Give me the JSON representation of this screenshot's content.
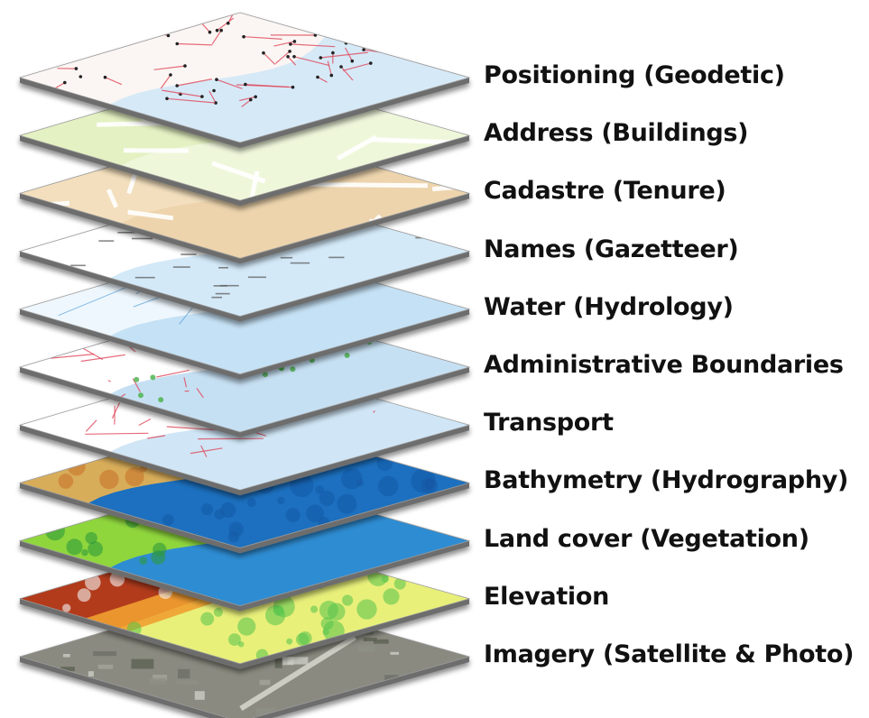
{
  "layers": [
    {
      "label": "Positioning (Geodetic)",
      "palette": [
        "#fbf6f3",
        "#d6e9f7",
        "#e0485a"
      ],
      "style": "geodetic"
    },
    {
      "label": "Address (Buildings)",
      "palette": [
        "#e4f1c2",
        "#f3f9e6",
        "#ffffff"
      ],
      "style": "address"
    },
    {
      "label": "Cadastre (Tenure)",
      "palette": [
        "#f3dfbd",
        "#e9cfa6",
        "#ffffff"
      ],
      "style": "cadastre"
    },
    {
      "label": "Names (Gazetteer)",
      "palette": [
        "#ffffff",
        "#d3e9f8",
        "#555555"
      ],
      "style": "names"
    },
    {
      "label": "Water (Hydrology)",
      "palette": [
        "#eef7fd",
        "#c5e1f5",
        "#3a8fd6"
      ],
      "style": "water"
    },
    {
      "label": "Administrative Boundaries",
      "palette": [
        "#ffffff",
        "#c6e0f3",
        "#e0485a"
      ],
      "style": "admin"
    },
    {
      "label": "Transport",
      "palette": [
        "#ffffff",
        "#d0e6f6",
        "#e0485a"
      ],
      "style": "transport"
    },
    {
      "label": "Bathymetry (Hydrography)",
      "palette": [
        "#d8ad5a",
        "#1f6fbf",
        "#0f4f9c"
      ],
      "style": "bathymetry"
    },
    {
      "label": "Land cover (Vegetation)",
      "palette": [
        "#8fd63c",
        "#2f8cd2",
        "#2f9a3a"
      ],
      "style": "landcover"
    },
    {
      "label": "Elevation",
      "palette": [
        "#b23a1a",
        "#e8f07a",
        "#53c24a"
      ],
      "style": "elevation"
    },
    {
      "label": "Imagery (Satellite & Photo)",
      "palette": [
        "#8a8a80",
        "#b7b9ae",
        "#4f5a4a"
      ],
      "style": "imagery"
    }
  ]
}
